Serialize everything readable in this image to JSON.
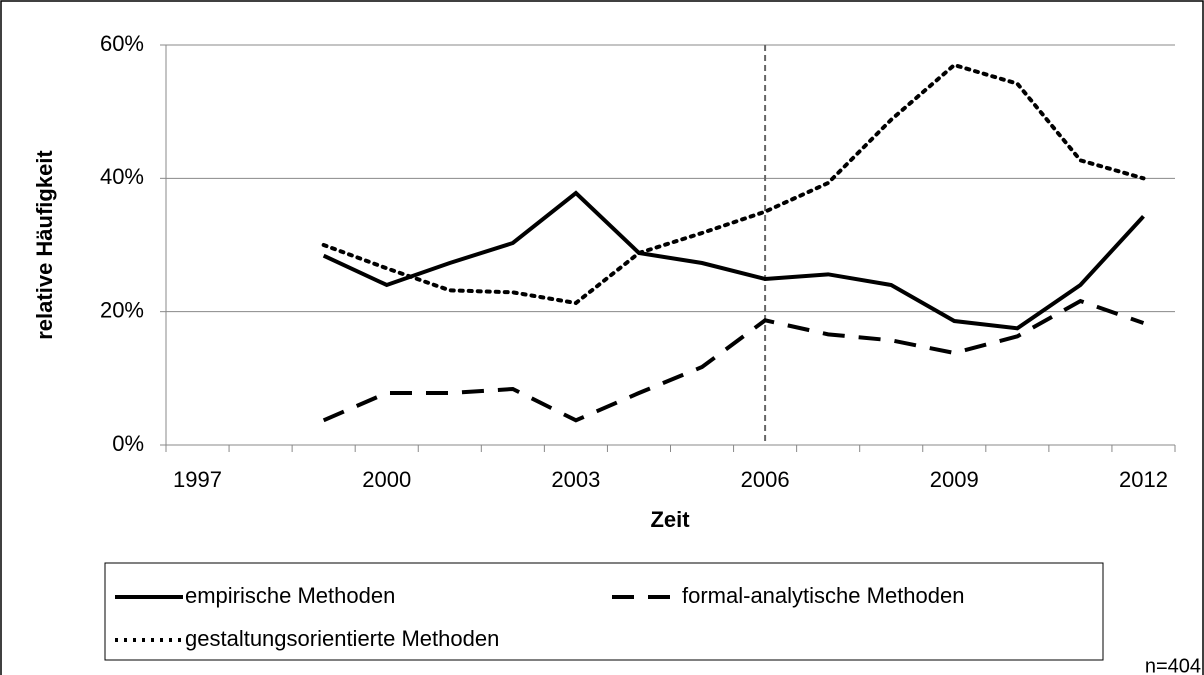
{
  "chart_data": {
    "type": "line",
    "y_label": "relative Häufigkeit",
    "x_label": "Zeit",
    "annotation": "n=404",
    "x": [
      1999,
      2000,
      2001,
      2002,
      2003,
      2004,
      2005,
      2006,
      2007,
      2008,
      2009,
      2010,
      2011,
      2012
    ],
    "xlim": [
      1996.5,
      2012.5
    ],
    "xticks": [
      1997,
      2000,
      2003,
      2006,
      2009,
      2012
    ],
    "ylim": [
      0,
      60
    ],
    "yticks": [
      {
        "value": 0,
        "label": "0%"
      },
      {
        "value": 20,
        "label": "20%"
      },
      {
        "value": 40,
        "label": "40%"
      },
      {
        "value": 60,
        "label": "60%"
      }
    ],
    "grid": true,
    "vline": 2006,
    "series": [
      {
        "name": "empirische Methoden",
        "color": "#000000",
        "dash": "solid",
        "values": [
          28.4,
          24.0,
          27.3,
          30.3,
          37.8,
          28.8,
          27.3,
          24.9,
          25.6,
          24.0,
          18.6,
          17.5,
          24.0,
          34.3
        ]
      },
      {
        "name": "formal-analytische Methoden",
        "color": "#000000",
        "dash": "dashed",
        "values": [
          3.7,
          7.8,
          7.8,
          8.4,
          3.7,
          7.8,
          11.7,
          18.7,
          16.6,
          15.7,
          13.8,
          16.3,
          21.6,
          18.3
        ]
      },
      {
        "name": "gestaltungsorientierte Methoden",
        "color": "#000000",
        "dash": "dotted",
        "values": [
          30.0,
          26.5,
          23.2,
          22.9,
          21.3,
          28.8,
          31.8,
          35.0,
          39.3,
          48.8,
          57.0,
          54.2,
          42.7,
          40.0
        ]
      }
    ]
  }
}
